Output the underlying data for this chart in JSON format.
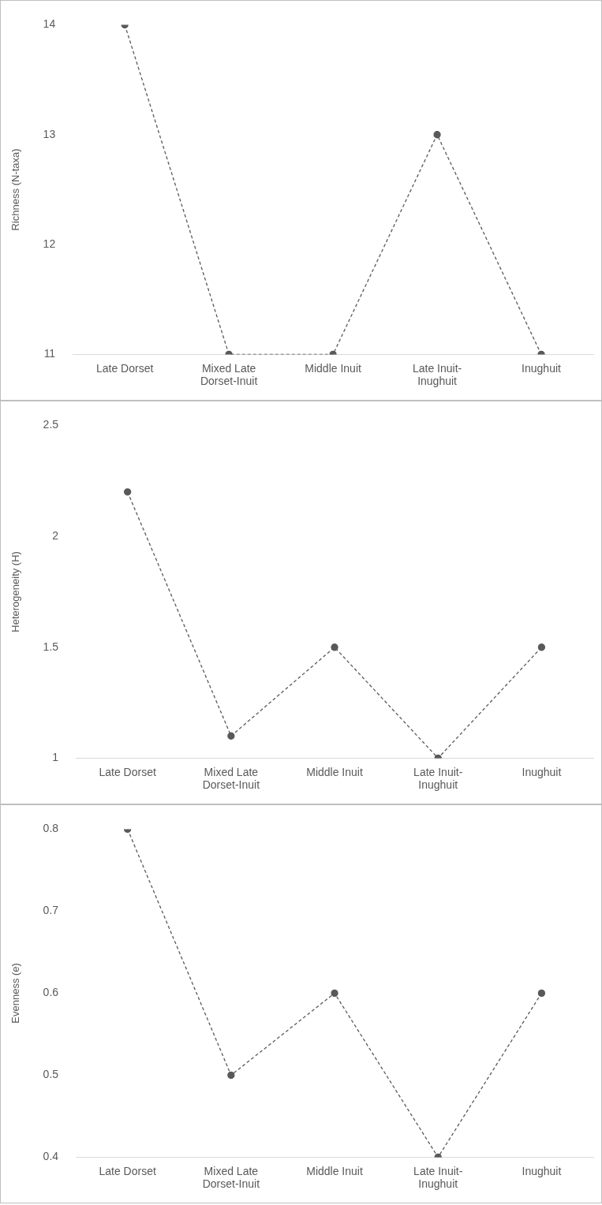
{
  "chart_data": [
    {
      "type": "line",
      "categories": [
        "Late Dorset",
        "Mixed Late Dorset-Inuit",
        "Middle Inuit",
        "Late Inuit-Inughuit",
        "Inughuit"
      ],
      "ylabel": "Richness (N-taxa)",
      "ylim": [
        11,
        14
      ],
      "yticks": [
        11,
        12,
        13,
        14
      ],
      "marker": "circle",
      "line_style": "dashed",
      "series": [
        {
          "color": "#595959",
          "values": [
            14,
            11,
            11,
            13,
            11
          ]
        }
      ]
    },
    {
      "type": "line",
      "categories": [
        "Late Dorset",
        "Mixed Late Dorset-Inuit",
        "Middle Inuit",
        "Late Inuit-Inughuit",
        "Inughuit"
      ],
      "ylabel": "Heterogeneity (H)",
      "ylim": [
        1,
        2.5
      ],
      "yticks": [
        1,
        1.5,
        2,
        2.5
      ],
      "marker": "circle",
      "line_style": "dashed",
      "series": [
        {
          "color": "#595959",
          "values": [
            2.2,
            1.1,
            1.5,
            1.0,
            1.5
          ]
        }
      ]
    },
    {
      "type": "line",
      "categories": [
        "Late Dorset",
        "Mixed Late Dorset-Inuit",
        "Middle Inuit",
        "Late Inuit-Inughuit",
        "Inughuit"
      ],
      "ylabel": "Evenness (e)",
      "ylim": [
        0.4,
        0.8
      ],
      "yticks": [
        0.4,
        0.5,
        0.6,
        0.7,
        0.8
      ],
      "marker": "circle",
      "line_style": "dashed",
      "series": [
        {
          "color": "#595959",
          "values": [
            0.8,
            0.5,
            0.6,
            0.4,
            0.6
          ]
        }
      ]
    }
  ]
}
